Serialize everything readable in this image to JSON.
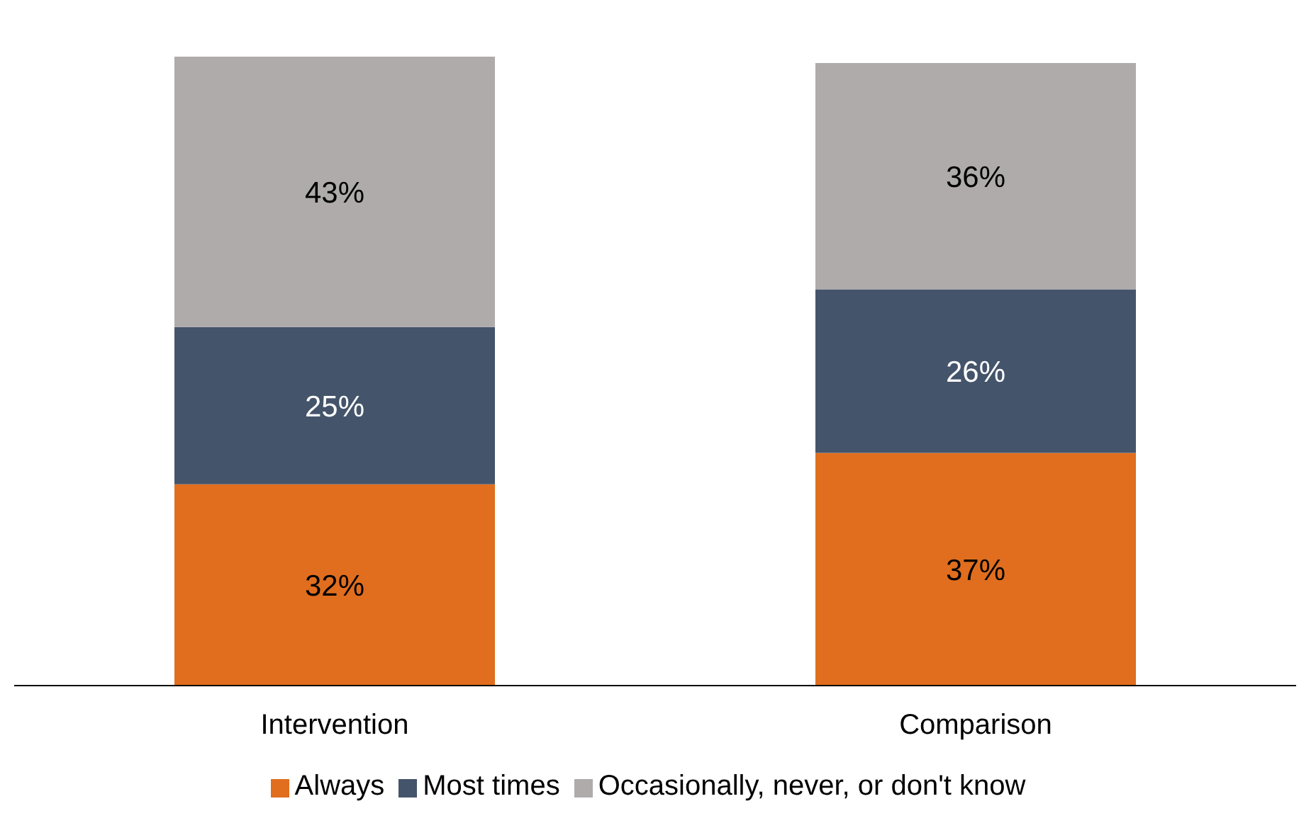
{
  "chart_data": {
    "type": "bar",
    "stacked": true,
    "categories": [
      "Intervention",
      "Comparison"
    ],
    "series": [
      {
        "name": "Always",
        "color": "#e06e1e",
        "values": [
          32,
          37
        ],
        "value_labels": [
          "32%",
          "37%"
        ]
      },
      {
        "name": "Most times",
        "color": "#44546a",
        "values": [
          25,
          26
        ],
        "value_labels": [
          "25%",
          "26%"
        ]
      },
      {
        "name": "Occasionally, never, or don't know",
        "color": "#afabab",
        "values": [
          43,
          36
        ],
        "value_labels": [
          "43%",
          "36%"
        ]
      }
    ],
    "legend": "bottom"
  }
}
